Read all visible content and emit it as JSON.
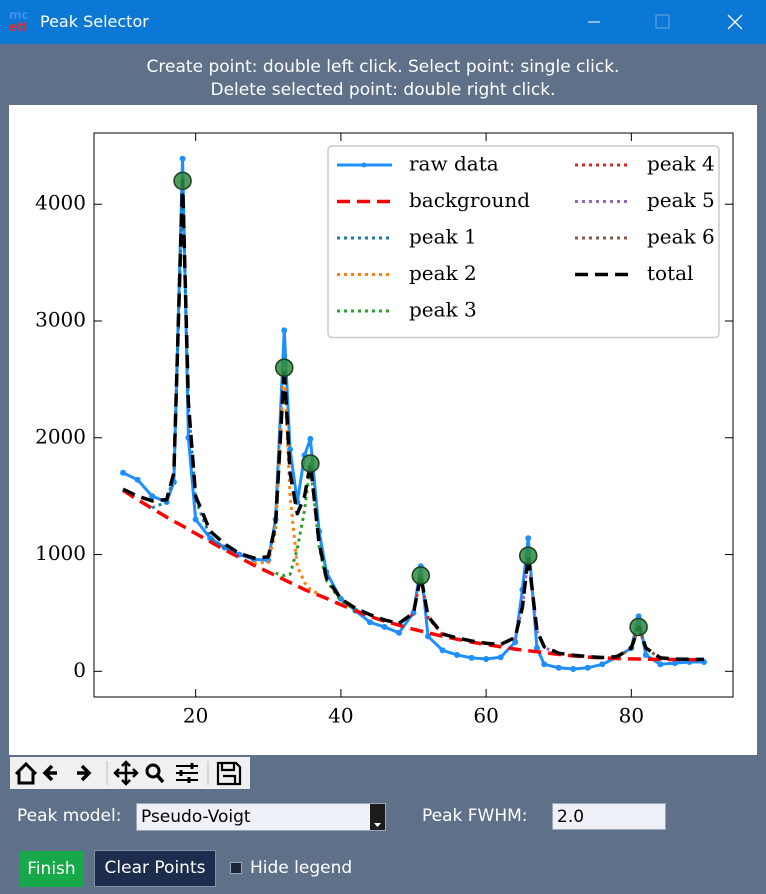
{
  "window": {
    "title": "Peak Selector",
    "logo": [
      "mc",
      "etl"
    ]
  },
  "instructions": [
    "Create point: double left click.  Select point: single click.",
    "Delete selected point: double right click."
  ],
  "chart_data": {
    "type": "line",
    "x": [
      10,
      12,
      14,
      16,
      17,
      18.2,
      19,
      20,
      22,
      24,
      26,
      28,
      30,
      31,
      32.2,
      33,
      34,
      35,
      35.8,
      37,
      38,
      40,
      42,
      44,
      46,
      48,
      50,
      51,
      52,
      54,
      56,
      58,
      60,
      62,
      64,
      65,
      65.8,
      67,
      68,
      70,
      72,
      74,
      76,
      78,
      80,
      81,
      82,
      84,
      86,
      88,
      90
    ],
    "series": [
      {
        "name": "raw data",
        "color": "#1e8fff",
        "linestyle": "solid",
        "marker": "o",
        "values": [
          1700,
          1640,
          1500,
          1450,
          1620,
          4390,
          2000,
          1300,
          1140,
          1060,
          1000,
          960,
          950,
          1300,
          2920,
          1900,
          1450,
          1850,
          1990,
          1200,
          850,
          620,
          520,
          420,
          380,
          330,
          500,
          900,
          300,
          180,
          140,
          115,
          105,
          120,
          250,
          700,
          1140,
          200,
          60,
          30,
          20,
          30,
          60,
          120,
          200,
          470,
          140,
          60,
          70,
          80,
          80
        ]
      },
      {
        "name": "background",
        "color": "#ff0000",
        "linestyle": "dashed",
        "values": [
          1550,
          1470,
          1395,
          1320,
          1285,
          1245,
          1215,
          1180,
          1110,
          1040,
          975,
          910,
          850,
          820,
          785,
          760,
          730,
          700,
          680,
          650,
          625,
          570,
          520,
          470,
          430,
          395,
          360,
          345,
          330,
          300,
          275,
          250,
          230,
          210,
          190,
          182,
          176,
          168,
          160,
          145,
          132,
          122,
          115,
          110,
          106,
          105,
          104,
          102,
          101,
          100,
          100
        ]
      },
      {
        "name": "peak 1",
        "color": "#1f77b4",
        "linestyle": "dotted",
        "values": [
          null,
          null,
          1400,
          1450,
          1680,
          4175,
          2270,
          1470,
          1150,
          1050,
          null,
          null,
          null,
          null,
          null,
          null,
          null,
          null,
          null,
          null,
          null,
          null,
          null,
          null,
          null,
          null,
          null,
          null,
          null,
          null,
          null,
          null,
          null,
          null,
          null,
          null,
          null,
          null,
          null,
          null,
          null,
          null,
          null,
          null,
          null,
          null,
          null,
          null,
          null,
          null,
          null
        ]
      },
      {
        "name": "peak 2",
        "color": "#ff7f0e",
        "linestyle": "dotted",
        "values": [
          null,
          null,
          null,
          null,
          null,
          null,
          null,
          null,
          null,
          null,
          null,
          930,
          930,
          1200,
          2600,
          1500,
          900,
          760,
          700,
          660,
          null,
          null,
          null,
          null,
          null,
          null,
          null,
          null,
          null,
          null,
          null,
          null,
          null,
          null,
          null,
          null,
          null,
          null,
          null,
          null,
          null,
          null,
          null,
          null,
          null,
          null,
          null,
          null,
          null,
          null,
          null
        ]
      },
      {
        "name": "peak 3",
        "color": "#2ca02c",
        "linestyle": "dotted",
        "values": [
          null,
          null,
          null,
          null,
          null,
          null,
          null,
          null,
          null,
          null,
          null,
          null,
          null,
          840,
          820,
          830,
          1050,
          1380,
          1780,
          1070,
          780,
          600,
          530,
          null,
          null,
          null,
          null,
          null,
          null,
          null,
          null,
          null,
          null,
          null,
          null,
          null,
          null,
          null,
          null,
          null,
          null,
          null,
          null,
          null,
          null,
          null,
          null,
          null,
          null,
          null,
          null
        ]
      },
      {
        "name": "peak 4",
        "color": "#d62728",
        "linestyle": "dotted",
        "values": [
          null,
          null,
          null,
          null,
          null,
          null,
          null,
          null,
          null,
          null,
          null,
          null,
          null,
          null,
          null,
          null,
          null,
          null,
          null,
          null,
          null,
          null,
          null,
          null,
          null,
          405,
          490,
          820,
          460,
          315,
          null,
          null,
          null,
          null,
          null,
          null,
          null,
          null,
          null,
          null,
          null,
          null,
          null,
          null,
          null,
          null,
          null,
          null,
          null,
          null,
          null
        ]
      },
      {
        "name": "peak 5",
        "color": "#9467bd",
        "linestyle": "dotted",
        "values": [
          null,
          null,
          null,
          null,
          null,
          null,
          null,
          null,
          null,
          null,
          null,
          null,
          null,
          null,
          null,
          null,
          null,
          null,
          null,
          null,
          null,
          null,
          null,
          null,
          null,
          null,
          null,
          null,
          null,
          null,
          null,
          null,
          null,
          225,
          285,
          545,
          990,
          345,
          205,
          150,
          null,
          null,
          null,
          null,
          null,
          null,
          null,
          null,
          null,
          null,
          null
        ]
      },
      {
        "name": "peak 6",
        "color": "#8c564b",
        "linestyle": "dotted",
        "values": [
          null,
          null,
          null,
          null,
          null,
          null,
          null,
          null,
          null,
          null,
          null,
          null,
          null,
          null,
          null,
          null,
          null,
          null,
          null,
          null,
          null,
          null,
          null,
          null,
          null,
          null,
          null,
          null,
          null,
          null,
          null,
          null,
          null,
          null,
          null,
          null,
          null,
          null,
          null,
          null,
          null,
          null,
          null,
          122,
          195,
          380,
          195,
          112,
          null,
          null,
          null
        ]
      },
      {
        "name": "total",
        "color": "#000000",
        "linestyle": "dashed",
        "values": [
          1560,
          1500,
          1460,
          1470,
          1700,
          4200,
          2300,
          1500,
          1200,
          1090,
          1010,
          970,
          980,
          1250,
          2600,
          1700,
          1350,
          1500,
          1780,
          1100,
          800,
          620,
          540,
          485,
          440,
          410,
          500,
          820,
          470,
          320,
          285,
          260,
          240,
          230,
          290,
          550,
          990,
          350,
          210,
          155,
          138,
          126,
          118,
          125,
          200,
          380,
          200,
          115,
          105,
          103,
          102
        ]
      }
    ],
    "selected_points": {
      "color": "#2e8b3c",
      "x": [
        18.2,
        32.2,
        35.8,
        51,
        65.8,
        81
      ],
      "y": [
        4200,
        2600,
        1780,
        820,
        990,
        380
      ]
    },
    "xlim": [
      6,
      94
    ],
    "ylim": [
      -220,
      4610
    ],
    "xticks": [
      20,
      40,
      60,
      80
    ],
    "yticks": [
      0,
      1000,
      2000,
      3000,
      4000
    ],
    "legend": "upper right",
    "legend_columns": 2,
    "tick_direction": "in"
  },
  "controls": {
    "peak_model_label": "Peak model:",
    "peak_model": "Pseudo-Voigt",
    "fwhm_label": "Peak FWHM:",
    "fwhm": "2.0",
    "finish": "Finish",
    "clear": "Clear Points",
    "hide_legend": "Hide legend"
  }
}
